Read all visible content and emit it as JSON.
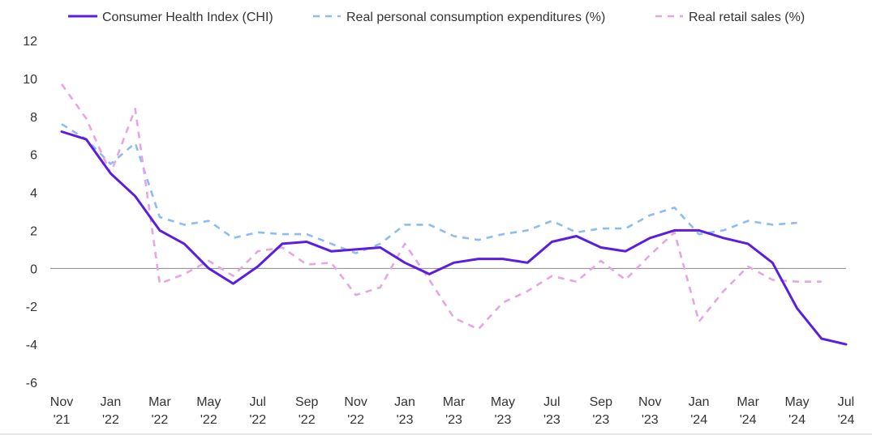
{
  "chart_data": {
    "type": "line",
    "x": [
      "2021-11",
      "2021-12",
      "2022-01",
      "2022-02",
      "2022-03",
      "2022-04",
      "2022-05",
      "2022-06",
      "2022-07",
      "2022-08",
      "2022-09",
      "2022-10",
      "2022-11",
      "2022-12",
      "2023-01",
      "2023-02",
      "2023-03",
      "2023-04",
      "2023-05",
      "2023-06",
      "2023-07",
      "2023-08",
      "2023-09",
      "2023-10",
      "2023-11",
      "2023-12",
      "2024-01",
      "2024-02",
      "2024-03",
      "2024-04",
      "2024-05",
      "2024-06",
      "2024-07"
    ],
    "x_tick_labels": [
      {
        "month": "Nov",
        "year": "'21"
      },
      {
        "month": "Jan",
        "year": "'22"
      },
      {
        "month": "Mar",
        "year": "'22"
      },
      {
        "month": "May",
        "year": "'22"
      },
      {
        "month": "Jul",
        "year": "'22"
      },
      {
        "month": "Sep",
        "year": "'22"
      },
      {
        "month": "Nov",
        "year": "'22"
      },
      {
        "month": "Jan",
        "year": "'23"
      },
      {
        "month": "Mar",
        "year": "'23"
      },
      {
        "month": "May",
        "year": "'23"
      },
      {
        "month": "Jul",
        "year": "'23"
      },
      {
        "month": "Sep",
        "year": "'23"
      },
      {
        "month": "Nov",
        "year": "'23"
      },
      {
        "month": "Jan",
        "year": "'24"
      },
      {
        "month": "Mar",
        "year": "'24"
      },
      {
        "month": "May",
        "year": "'24"
      },
      {
        "month": "Jul",
        "year": "'24"
      }
    ],
    "y_ticks": [
      "12",
      "10",
      "8",
      "6",
      "4",
      "2",
      "0",
      "-2",
      "-4",
      "-6"
    ],
    "ylim": [
      -6,
      12
    ],
    "grid": false,
    "legend_position": "top",
    "series": [
      {
        "name": "Consumer Health Index (CHI)",
        "color": "#5b1ee0",
        "style": "solid",
        "values": [
          7.2,
          6.8,
          5.0,
          3.8,
          2.0,
          1.3,
          0.0,
          -0.8,
          0.1,
          1.3,
          1.4,
          0.9,
          1.0,
          1.1,
          0.3,
          -0.3,
          0.3,
          0.5,
          0.5,
          0.3,
          1.4,
          1.7,
          1.1,
          0.9,
          1.6,
          2.0,
          2.0,
          1.6,
          1.3,
          0.3,
          -2.1,
          -3.7,
          -4.0
        ]
      },
      {
        "name": "Real personal consumption expenditures (%)",
        "color": "#8cbcf2",
        "style": "dashed",
        "values": [
          7.6,
          6.8,
          5.5,
          6.6,
          2.7,
          2.3,
          2.5,
          1.6,
          1.9,
          1.8,
          1.8,
          1.3,
          0.8,
          1.3,
          2.3,
          2.3,
          1.7,
          1.5,
          1.8,
          2.0,
          2.5,
          1.9,
          2.1,
          2.1,
          2.8,
          3.2,
          1.8,
          2.0,
          2.5,
          2.3,
          2.4,
          null,
          null
        ]
      },
      {
        "name": "Real retail sales (%)",
        "color": "#e6a6e0",
        "style": "dashed",
        "values": [
          9.7,
          7.9,
          5.0,
          8.4,
          -0.8,
          -0.3,
          0.4,
          -0.4,
          0.9,
          1.1,
          0.2,
          0.3,
          -1.4,
          -1.0,
          1.3,
          -0.6,
          -2.6,
          -3.2,
          -1.8,
          -1.2,
          -0.4,
          -0.7,
          0.4,
          -0.6,
          0.7,
          1.9,
          -2.8,
          -1.2,
          0.1,
          -0.6,
          -0.7,
          -0.7,
          null
        ]
      }
    ]
  }
}
